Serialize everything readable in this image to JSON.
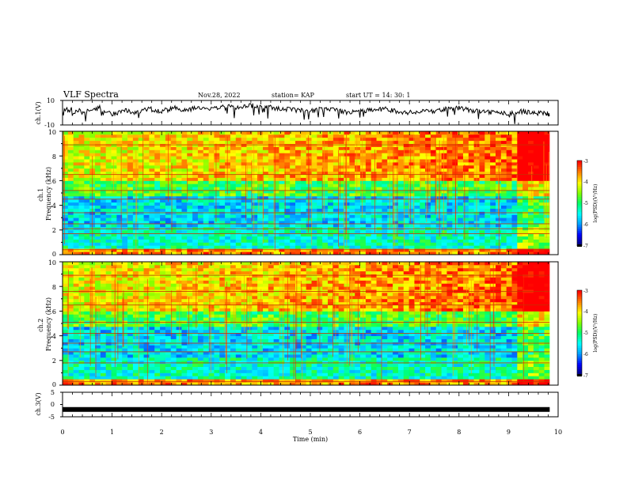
{
  "header": {
    "title": "VLF Spectra",
    "date": "Nov.28, 2022",
    "station": "station= KAP",
    "start": "start  UT =   14: 30: 1"
  },
  "colors": {
    "scale": [
      "#000000",
      "#00007f",
      "#0000ff",
      "#007fff",
      "#00ffff",
      "#00ff7f",
      "#7fff00",
      "#ffff00",
      "#ff7f00",
      "#ff0000",
      "#ff7f7f",
      "#ffffff"
    ]
  },
  "chart_data": [
    {
      "type": "line",
      "ylabel": "ch.1(V)",
      "ylim": [
        -10,
        10
      ],
      "yticks": [
        "10",
        "-10"
      ],
      "xlim": [
        0,
        10
      ],
      "series": [
        {
          "x": [
            0,
            0.25,
            0.5,
            0.75,
            1,
            1.25,
            1.5,
            1.75,
            2,
            2.25,
            2.5,
            2.75,
            3,
            3.25,
            3.5,
            3.75,
            4,
            4.25,
            4.5,
            4.75,
            5,
            5.25,
            5.5,
            5.75,
            6,
            6.25,
            6.5,
            6.75,
            7,
            7.25,
            7.5,
            7.75,
            8,
            8.25,
            8.5,
            8.75,
            9,
            9.25,
            9.5,
            9.75,
            9.83
          ],
          "values": [
            2,
            3,
            1,
            4,
            -1,
            2,
            0,
            3,
            1,
            4,
            2,
            5,
            3,
            6,
            4,
            6,
            5,
            4,
            3,
            2,
            1,
            3,
            2,
            0,
            1,
            2,
            3,
            1,
            0,
            2,
            1,
            3,
            4,
            2,
            1,
            0,
            -1,
            1,
            0,
            -1,
            -1
          ]
        }
      ]
    },
    {
      "type": "heatmap",
      "ylabel": "ch.1\nFrequency  (kHz)",
      "ylim": [
        0,
        10
      ],
      "yticks": [
        "0",
        "2",
        "4",
        "6",
        "8",
        "10"
      ],
      "xlim": [
        0,
        9.83
      ],
      "colorbar": {
        "label": "log(PSD)(V²/Hz)",
        "range": [
          -7,
          -3
        ],
        "ticks": [
          "-3",
          "-4",
          "-5",
          "-6",
          "-7"
        ]
      },
      "lines_khz": [
        0.4,
        1.7,
        2.1,
        2.5,
        3.4,
        4.5,
        5.2,
        6.5,
        8.9
      ]
    },
    {
      "type": "heatmap",
      "ylabel": "ch.2\nFrequency  (kHz)",
      "ylim": [
        0,
        10
      ],
      "yticks": [
        "0",
        "2",
        "4",
        "6",
        "8",
        "10"
      ],
      "xlim": [
        0,
        9.83
      ],
      "colorbar": {
        "label": "log(PSD)(V²/Hz)",
        "range": [
          -7,
          -3
        ],
        "ticks": [
          "-3",
          "-4",
          "-5",
          "-6",
          "-7"
        ]
      },
      "lines_khz": [
        0.3,
        1.8,
        2.7,
        3.4,
        4.2,
        5.1,
        6.5,
        7.6,
        8.9
      ]
    },
    {
      "type": "line",
      "ylabel": "ch.3(V)",
      "ylim": [
        -5,
        5
      ],
      "yticks": [
        "5",
        "0",
        "-5"
      ],
      "xlim": [
        0,
        10
      ],
      "xlabel": "Time  (min)",
      "xticks": [
        "0",
        "1",
        "2",
        "3",
        "4",
        "5",
        "6",
        "7",
        "8",
        "9",
        "10"
      ],
      "series": [
        {
          "x": [
            0,
            9.83
          ],
          "values": [
            -2,
            -2
          ]
        }
      ]
    }
  ]
}
